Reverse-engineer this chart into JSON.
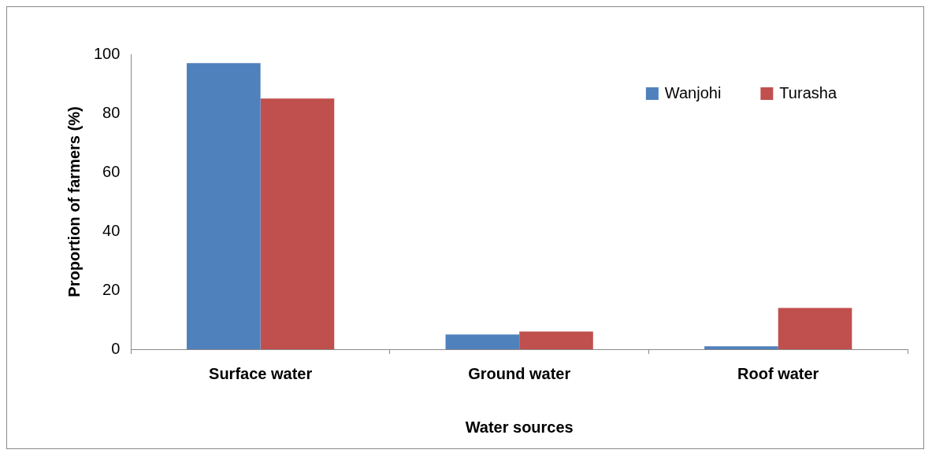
{
  "chart_data": {
    "type": "bar",
    "xlabel": "Water sources",
    "ylabel": "Proportion of farmers (%)",
    "categories": [
      "Surface water",
      "Ground water",
      "Roof water"
    ],
    "series": [
      {
        "name": "Wanjohi",
        "color": "#4f81bd",
        "values": [
          97,
          5,
          1
        ]
      },
      {
        "name": "Turasha",
        "color": "#c0504d",
        "values": [
          85,
          6,
          14
        ]
      }
    ],
    "ylim": [
      0,
      100
    ],
    "yticks": [
      0,
      20,
      40,
      60,
      80,
      100
    ],
    "grid": false,
    "legend": "top right"
  }
}
